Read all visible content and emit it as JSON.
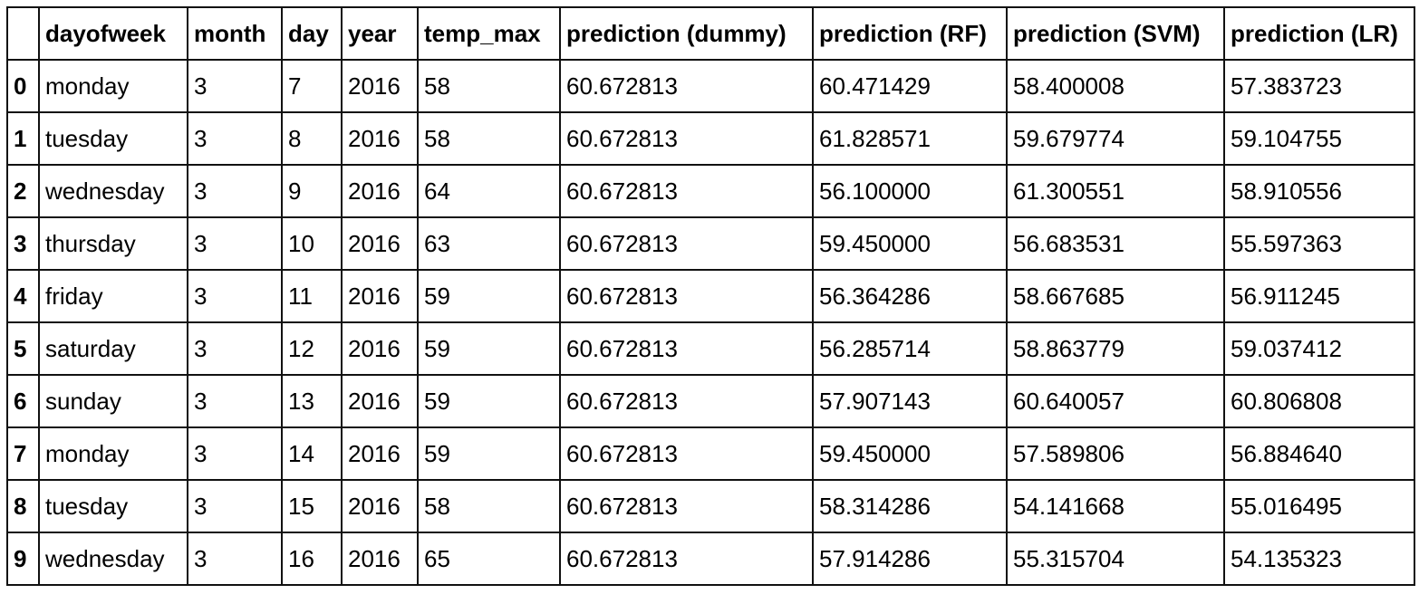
{
  "table": {
    "columns": [
      "",
      "dayofweek",
      "month",
      "day",
      "year",
      "temp_max",
      "prediction (dummy)",
      "prediction (RF)",
      "prediction (SVM)",
      "prediction (LR)"
    ],
    "rows": [
      {
        "index": "0",
        "cells": [
          "monday",
          "3",
          "7",
          "2016",
          "58",
          "60.672813",
          "60.471429",
          "58.400008",
          "57.383723"
        ]
      },
      {
        "index": "1",
        "cells": [
          "tuesday",
          "3",
          "8",
          "2016",
          "58",
          "60.672813",
          "61.828571",
          "59.679774",
          "59.104755"
        ]
      },
      {
        "index": "2",
        "cells": [
          "wednesday",
          "3",
          "9",
          "2016",
          "64",
          "60.672813",
          "56.100000",
          "61.300551",
          "58.910556"
        ]
      },
      {
        "index": "3",
        "cells": [
          "thursday",
          "3",
          "10",
          "2016",
          "63",
          "60.672813",
          "59.450000",
          "56.683531",
          "55.597363"
        ]
      },
      {
        "index": "4",
        "cells": [
          "friday",
          "3",
          "11",
          "2016",
          "59",
          "60.672813",
          "56.364286",
          "58.667685",
          "56.911245"
        ]
      },
      {
        "index": "5",
        "cells": [
          "saturday",
          "3",
          "12",
          "2016",
          "59",
          "60.672813",
          "56.285714",
          "58.863779",
          "59.037412"
        ]
      },
      {
        "index": "6",
        "cells": [
          "sunday",
          "3",
          "13",
          "2016",
          "59",
          "60.672813",
          "57.907143",
          "60.640057",
          "60.806808"
        ]
      },
      {
        "index": "7",
        "cells": [
          "monday",
          "3",
          "14",
          "2016",
          "59",
          "60.672813",
          "59.450000",
          "57.589806",
          "56.884640"
        ]
      },
      {
        "index": "8",
        "cells": [
          "tuesday",
          "3",
          "15",
          "2016",
          "58",
          "60.672813",
          "58.314286",
          "54.141668",
          "55.016495"
        ]
      },
      {
        "index": "9",
        "cells": [
          "wednesday",
          "3",
          "16",
          "2016",
          "65",
          "60.672813",
          "57.914286",
          "55.315704",
          "54.135323"
        ]
      }
    ]
  }
}
